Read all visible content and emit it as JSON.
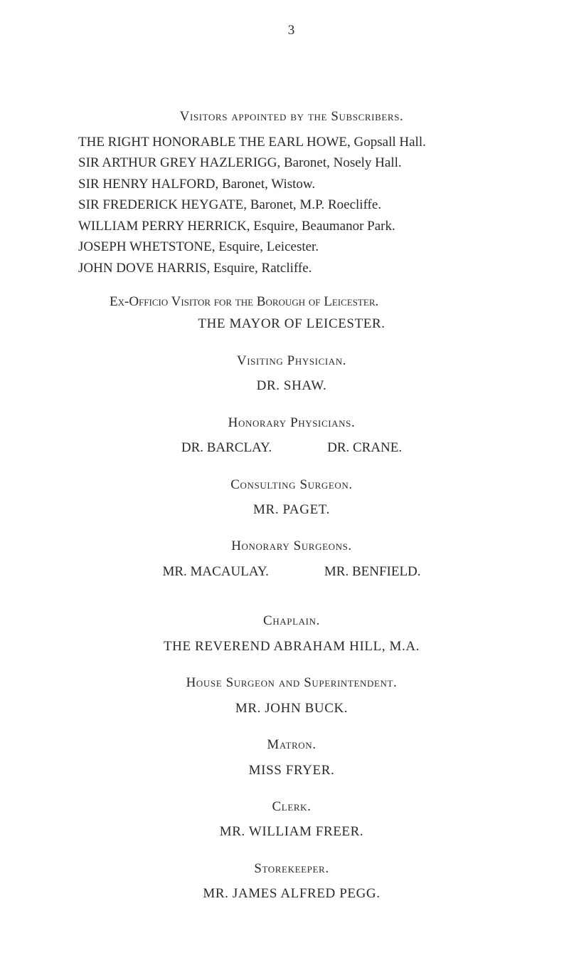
{
  "colors": {
    "background": "#ffffff",
    "text": "#2a2a2a"
  },
  "typography": {
    "family": "Times New Roman",
    "body_size_pt": 14,
    "heading_small_caps": true
  },
  "page_number": "3",
  "visitors_heading": "Visitors appointed by the Subscribers.",
  "visitors_lines": [
    "THE RIGHT HONORABLE THE EARL HOWE, Gopsall Hall.",
    "SIR ARTHUR GREY HAZLERIGG, Baronet, Nosely Hall.",
    "SIR HENRY HALFORD, Baronet, Wistow.",
    "SIR FREDERICK HEYGATE, Baronet, M.P. Roecliffe.",
    "WILLIAM PERRY HERRICK, Esquire, Beaumanor Park.",
    "JOSEPH WHETSTONE, Esquire, Leicester.",
    "JOHN DOVE HARRIS, Esquire, Ratcliffe."
  ],
  "exofficio_heading": "Ex-Officio Visitor for the Borough of Leicester.",
  "exofficio_name": "THE MAYOR OF LEICESTER.",
  "visiting_heading": "Visiting Physician.",
  "visiting_name": "DR. SHAW.",
  "honorary_phys_heading": "Honorary Physicians.",
  "honorary_phys_left": "DR. BARCLAY.",
  "honorary_phys_right": "DR. CRANE.",
  "consulting_heading": "Consulting Surgeon.",
  "consulting_name": "MR. PAGET.",
  "honorary_surg_heading": "Honorary Surgeons.",
  "honorary_surg_left": "MR. MACAULAY.",
  "honorary_surg_right": "MR. BENFIELD.",
  "chaplain_heading": "Chaplain.",
  "chaplain_name": "THE REVEREND ABRAHAM HILL, M.A.",
  "house_heading": "House Surgeon and Superintendent.",
  "house_name": "MR. JOHN BUCK.",
  "matron_heading": "Matron.",
  "matron_name": "MISS FRYER.",
  "clerk_heading": "Clerk.",
  "clerk_name": "MR. WILLIAM FREER.",
  "storekeeper_heading": "Storekeeper.",
  "storekeeper_name": "MR. JAMES ALFRED PEGG."
}
